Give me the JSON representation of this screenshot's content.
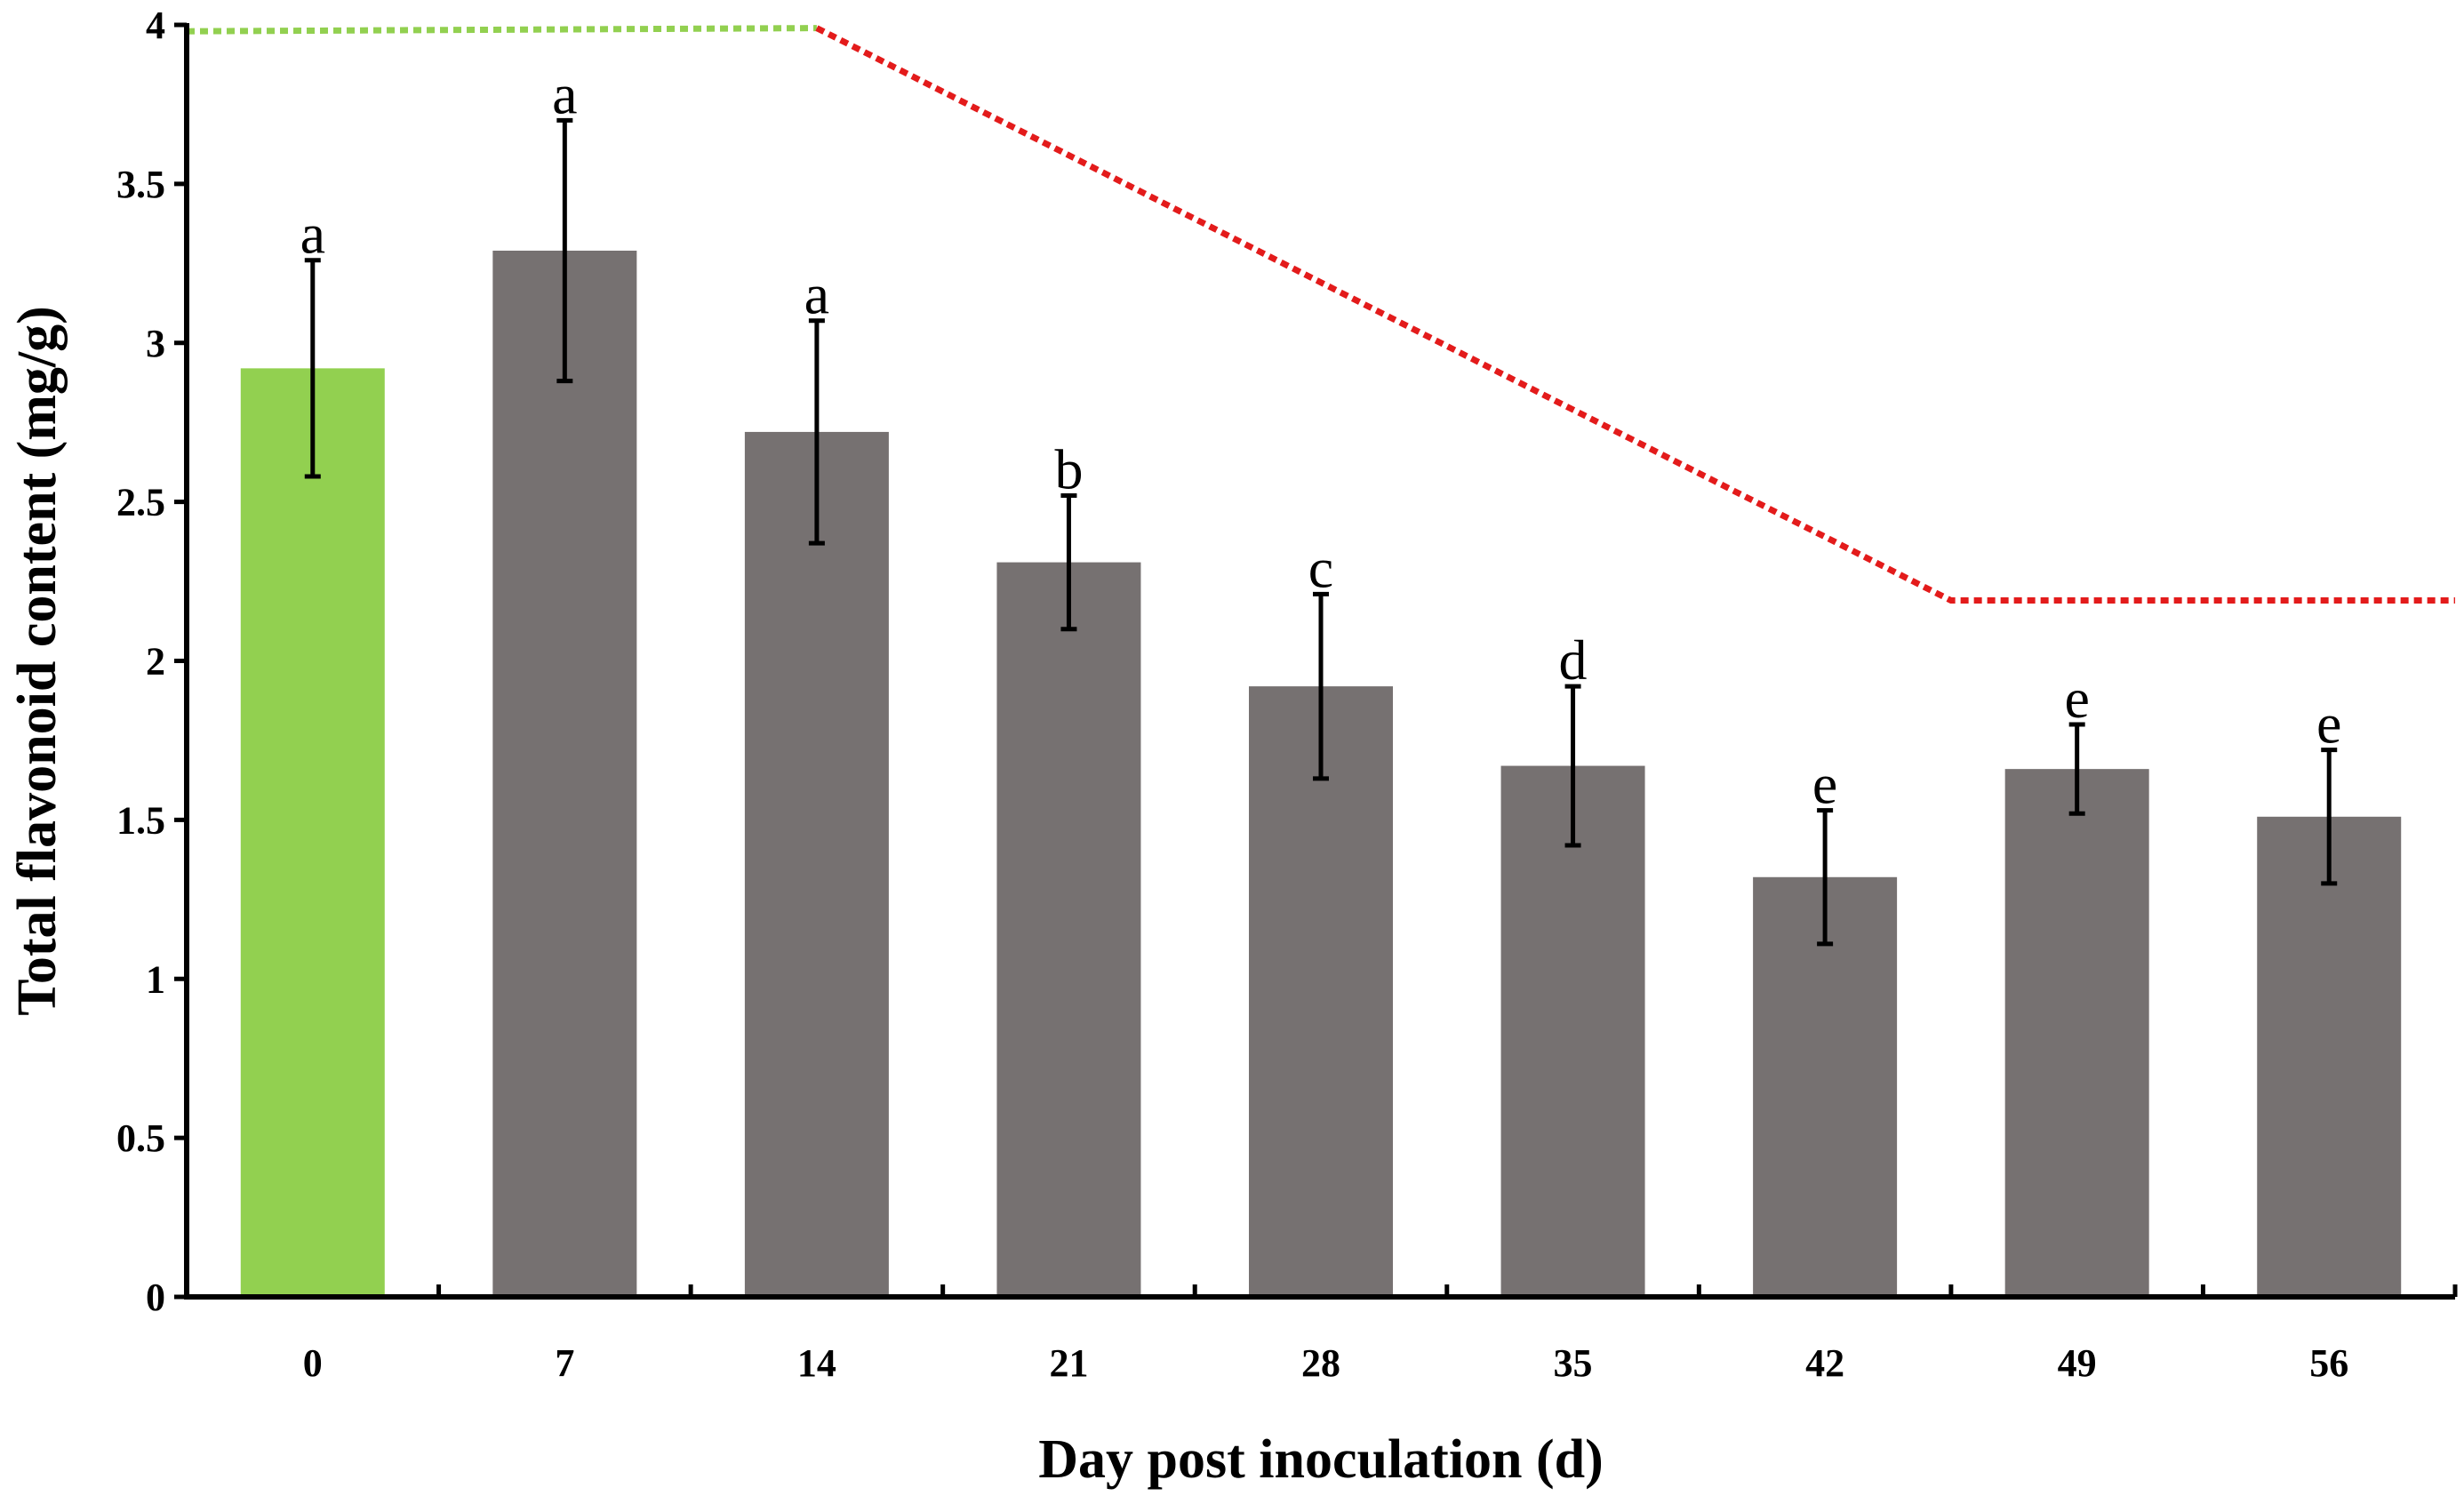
{
  "chart_data": {
    "type": "bar",
    "title": "",
    "xlabel": "Day post inoculation (d)",
    "ylabel": "Total flavonoid content (mg/g)",
    "ylim": [
      0,
      4
    ],
    "yticks": [
      "0",
      "0.5",
      "1",
      "1.5",
      "2",
      "2.5",
      "3",
      "3.5",
      "4"
    ],
    "categories": [
      "0",
      "7",
      "14",
      "21",
      "28",
      "35",
      "42",
      "49",
      "56"
    ],
    "values": [
      2.92,
      3.29,
      2.72,
      2.31,
      1.92,
      1.67,
      1.32,
      1.66,
      1.51
    ],
    "errors": [
      0.34,
      0.41,
      0.35,
      0.21,
      0.29,
      0.25,
      0.21,
      0.14,
      0.21
    ],
    "significance": [
      "a",
      "a",
      "a",
      "b",
      "c",
      "d",
      "e",
      "e",
      "e"
    ],
    "bar_colors": [
      "#92d050",
      "#767171",
      "#767171",
      "#767171",
      "#767171",
      "#767171",
      "#767171",
      "#767171",
      "#767171"
    ],
    "annotation_lines": [
      {
        "name": "green-dotted-line",
        "color": "#92d050",
        "points": [
          [
            -0.5,
            3.98
          ],
          [
            2.0,
            3.99
          ]
        ]
      },
      {
        "name": "red-dotted-line",
        "color": "#e31b1b",
        "points": [
          [
            2.0,
            3.99
          ],
          [
            6.5,
            2.19
          ],
          [
            8.5,
            2.19
          ]
        ]
      }
    ]
  }
}
